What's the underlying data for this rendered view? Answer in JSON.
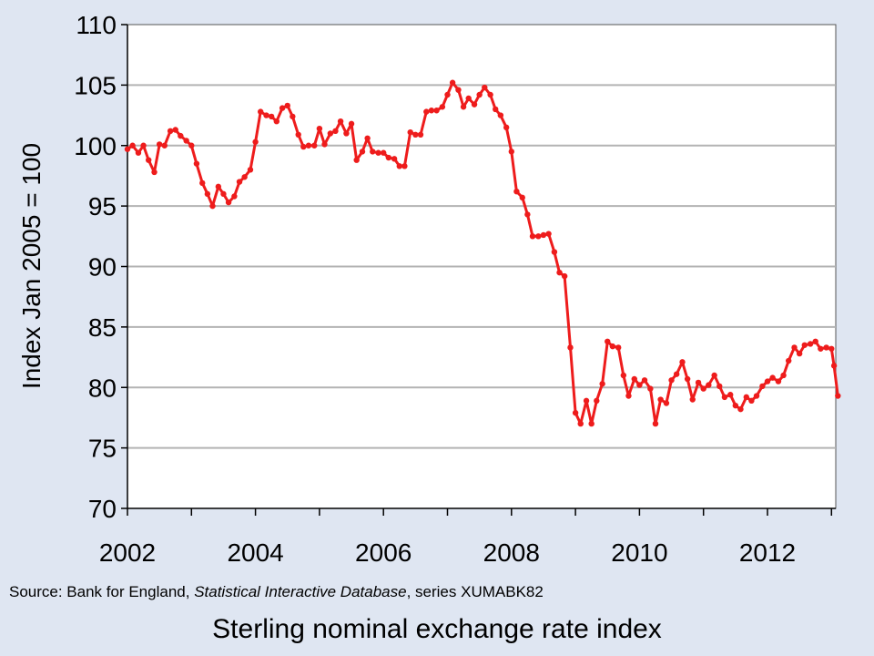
{
  "chart_data": {
    "type": "line",
    "ylabel": "Index Jan 2005 = 100",
    "xlim": [
      2002,
      2013.1
    ],
    "ylim": [
      70,
      110
    ],
    "yticks": [
      70,
      75,
      80,
      85,
      90,
      95,
      100,
      105,
      110
    ],
    "xticks": [
      2002,
      2003,
      2004,
      2005,
      2006,
      2007,
      2008,
      2009,
      2010,
      2011,
      2012,
      2013
    ],
    "xtick_labels": [
      {
        "x": 2002,
        "label": "2002"
      },
      {
        "x": 2004,
        "label": "2004"
      },
      {
        "x": 2006,
        "label": "2006"
      },
      {
        "x": 2008,
        "label": "2008"
      },
      {
        "x": 2010,
        "label": "2010"
      },
      {
        "x": 2012,
        "label": "2012"
      }
    ],
    "grid": "horizontal",
    "legend": "none",
    "series": [
      {
        "color": "#ee1c1c",
        "points": [
          [
            2002.0,
            99.7
          ],
          [
            2002.08,
            100.0
          ],
          [
            2002.17,
            99.4
          ],
          [
            2002.25,
            100.0
          ],
          [
            2002.33,
            98.8
          ],
          [
            2002.42,
            97.8
          ],
          [
            2002.5,
            100.1
          ],
          [
            2002.58,
            100.0
          ],
          [
            2002.67,
            101.2
          ],
          [
            2002.75,
            101.3
          ],
          [
            2002.83,
            100.8
          ],
          [
            2002.92,
            100.4
          ],
          [
            2003.0,
            100.0
          ],
          [
            2003.08,
            98.5
          ],
          [
            2003.17,
            96.9
          ],
          [
            2003.25,
            96.0
          ],
          [
            2003.33,
            95.0
          ],
          [
            2003.42,
            96.6
          ],
          [
            2003.5,
            96.0
          ],
          [
            2003.58,
            95.3
          ],
          [
            2003.67,
            95.8
          ],
          [
            2003.75,
            97.0
          ],
          [
            2003.83,
            97.4
          ],
          [
            2003.92,
            98.0
          ],
          [
            2004.0,
            100.3
          ],
          [
            2004.08,
            102.8
          ],
          [
            2004.17,
            102.5
          ],
          [
            2004.25,
            102.4
          ],
          [
            2004.33,
            102.0
          ],
          [
            2004.42,
            103.1
          ],
          [
            2004.5,
            103.3
          ],
          [
            2004.58,
            102.4
          ],
          [
            2004.67,
            100.9
          ],
          [
            2004.75,
            99.9
          ],
          [
            2004.83,
            100.0
          ],
          [
            2004.92,
            100.0
          ],
          [
            2005.0,
            101.4
          ],
          [
            2005.08,
            100.1
          ],
          [
            2005.17,
            101.0
          ],
          [
            2005.25,
            101.2
          ],
          [
            2005.33,
            102.0
          ],
          [
            2005.42,
            101.0
          ],
          [
            2005.5,
            101.8
          ],
          [
            2005.58,
            98.8
          ],
          [
            2005.67,
            99.5
          ],
          [
            2005.75,
            100.6
          ],
          [
            2005.83,
            99.5
          ],
          [
            2005.92,
            99.4
          ],
          [
            2006.0,
            99.4
          ],
          [
            2006.08,
            99.0
          ],
          [
            2006.17,
            98.9
          ],
          [
            2006.25,
            98.3
          ],
          [
            2006.33,
            98.3
          ],
          [
            2006.42,
            101.1
          ],
          [
            2006.5,
            100.9
          ],
          [
            2006.58,
            100.9
          ],
          [
            2006.67,
            102.8
          ],
          [
            2006.75,
            102.9
          ],
          [
            2006.83,
            102.9
          ],
          [
            2006.92,
            103.2
          ],
          [
            2007.0,
            104.2
          ],
          [
            2007.08,
            105.2
          ],
          [
            2007.17,
            104.6
          ],
          [
            2007.25,
            103.2
          ],
          [
            2007.33,
            103.9
          ],
          [
            2007.42,
            103.4
          ],
          [
            2007.5,
            104.2
          ],
          [
            2007.58,
            104.8
          ],
          [
            2007.67,
            104.2
          ],
          [
            2007.75,
            103.0
          ],
          [
            2007.83,
            102.5
          ],
          [
            2007.92,
            101.5
          ],
          [
            2008.0,
            99.5
          ],
          [
            2008.08,
            96.2
          ],
          [
            2008.17,
            95.7
          ],
          [
            2008.25,
            94.3
          ],
          [
            2008.33,
            92.5
          ],
          [
            2008.42,
            92.5
          ],
          [
            2008.5,
            92.6
          ],
          [
            2008.58,
            92.7
          ],
          [
            2008.67,
            91.2
          ],
          [
            2008.75,
            89.5
          ],
          [
            2008.83,
            89.2
          ],
          [
            2008.92,
            83.3
          ],
          [
            2009.0,
            77.9
          ],
          [
            2009.08,
            77.0
          ],
          [
            2009.17,
            78.9
          ],
          [
            2009.25,
            77.0
          ],
          [
            2009.33,
            78.9
          ],
          [
            2009.42,
            80.3
          ],
          [
            2009.5,
            83.8
          ],
          [
            2009.58,
            83.4
          ],
          [
            2009.67,
            83.3
          ],
          [
            2009.75,
            81.0
          ],
          [
            2009.83,
            79.3
          ],
          [
            2009.92,
            80.7
          ],
          [
            2010.0,
            80.2
          ],
          [
            2010.08,
            80.6
          ],
          [
            2010.17,
            79.9
          ],
          [
            2010.25,
            77.0
          ],
          [
            2010.33,
            79.0
          ],
          [
            2010.42,
            78.7
          ],
          [
            2010.5,
            80.6
          ],
          [
            2010.58,
            81.1
          ],
          [
            2010.67,
            82.1
          ],
          [
            2010.75,
            80.7
          ],
          [
            2010.83,
            79.0
          ],
          [
            2010.92,
            80.4
          ],
          [
            2011.0,
            79.9
          ],
          [
            2011.08,
            80.2
          ],
          [
            2011.17,
            81.0
          ],
          [
            2011.25,
            80.1
          ],
          [
            2011.33,
            79.2
          ],
          [
            2011.42,
            79.4
          ],
          [
            2011.5,
            78.5
          ],
          [
            2011.58,
            78.2
          ],
          [
            2011.67,
            79.2
          ],
          [
            2011.75,
            78.9
          ],
          [
            2011.83,
            79.3
          ],
          [
            2011.92,
            80.1
          ],
          [
            2012.0,
            80.5
          ],
          [
            2012.08,
            80.8
          ],
          [
            2012.17,
            80.5
          ],
          [
            2012.25,
            81.0
          ],
          [
            2012.33,
            82.2
          ],
          [
            2012.42,
            83.3
          ],
          [
            2012.5,
            82.8
          ],
          [
            2012.58,
            83.5
          ],
          [
            2012.67,
            83.6
          ],
          [
            2012.75,
            83.8
          ],
          [
            2012.83,
            83.2
          ],
          [
            2012.92,
            83.3
          ],
          [
            2013.0,
            83.2
          ],
          [
            2013.04,
            81.8
          ],
          [
            2013.1,
            79.3
          ]
        ]
      }
    ]
  },
  "source": {
    "prefix": "Source: Bank for England, ",
    "italic": "Statistical Interactive Database",
    "suffix": ", series XUMABK82"
  },
  "slide_title": "Sterling nominal exchange rate index"
}
